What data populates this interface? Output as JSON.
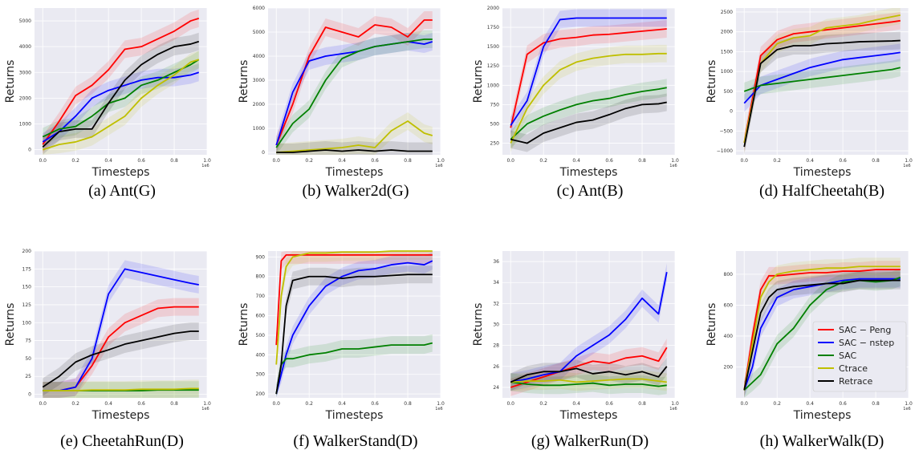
{
  "figure": {
    "legend": [
      "SAC − Peng",
      "SAC − nstep",
      "SAC",
      "Ctrace",
      "Retrace"
    ],
    "legend_placement": "lower-right of panel (h)"
  },
  "colors": {
    "SAC − Peng": "#ff0000",
    "SAC − nstep": "#0000ff",
    "SAC": "#008000",
    "Ctrace": "#bfbf00",
    "Retrace": "#000000",
    "panel_bg": "#eaeaf2",
    "grid": "#ffffff"
  },
  "chart_data": [
    {
      "type": "line",
      "caption": "(a)  Ant(G)",
      "xlabel": "Timesteps",
      "ylabel": "Returns",
      "xlim": [
        -0.05,
        1.0
      ],
      "ylim": [
        -200,
        5500
      ],
      "xticks": [
        "0.0",
        "0.2",
        "0.4",
        "0.6",
        "0.8",
        "1.0"
      ],
      "xtick_values": [
        0,
        0.2,
        0.4,
        0.6,
        0.8,
        1.0
      ],
      "x_exponent": "1e6",
      "yticks": [
        "0",
        "1000",
        "2000",
        "3000",
        "4000",
        "5000"
      ],
      "ytick_values": [
        0,
        1000,
        2000,
        3000,
        4000,
        5000
      ],
      "x": [
        0.0,
        0.1,
        0.2,
        0.3,
        0.4,
        0.5,
        0.6,
        0.7,
        0.8,
        0.9,
        0.95
      ],
      "series": [
        {
          "name": "SAC − Peng",
          "values": [
            200,
            1100,
            2100,
            2500,
            3100,
            3900,
            4000,
            4300,
            4600,
            5000,
            5100
          ]
        },
        {
          "name": "SAC − nstep",
          "values": [
            300,
            700,
            1300,
            2000,
            2300,
            2500,
            2700,
            2800,
            2800,
            2900,
            3000
          ]
        },
        {
          "name": "SAC",
          "values": [
            500,
            800,
            900,
            1300,
            1800,
            2000,
            2500,
            2700,
            3000,
            3300,
            3500
          ]
        },
        {
          "name": "Ctrace",
          "values": [
            0,
            200,
            300,
            500,
            900,
            1300,
            2000,
            2500,
            2900,
            3400,
            3500
          ]
        },
        {
          "name": "Retrace",
          "values": [
            100,
            700,
            800,
            800,
            1800,
            2700,
            3300,
            3700,
            4000,
            4100,
            4200
          ]
        }
      ]
    },
    {
      "type": "line",
      "caption": "(b)  Walker2d(G)",
      "xlabel": "Timesteps",
      "ylabel": "Returns",
      "xlim": [
        -0.05,
        1.0
      ],
      "ylim": [
        -100,
        6000
      ],
      "xticks": [
        "0.0",
        "0.2",
        "0.4",
        "0.6",
        "0.8",
        "1.0"
      ],
      "xtick_values": [
        0,
        0.2,
        0.4,
        0.6,
        0.8,
        1.0
      ],
      "x_exponent": "1e6",
      "yticks": [
        "0",
        "1000",
        "2000",
        "3000",
        "4000",
        "5000",
        "6000"
      ],
      "ytick_values": [
        0,
        1000,
        2000,
        3000,
        4000,
        5000,
        6000
      ],
      "x": [
        0.0,
        0.1,
        0.2,
        0.3,
        0.4,
        0.5,
        0.6,
        0.7,
        0.8,
        0.9,
        0.95
      ],
      "series": [
        {
          "name": "SAC − Peng",
          "values": [
            300,
            2000,
            4000,
            5200,
            5000,
            4800,
            5300,
            5200,
            4800,
            5500,
            5500
          ]
        },
        {
          "name": "SAC − nstep",
          "values": [
            300,
            2500,
            3800,
            4000,
            4100,
            4200,
            4400,
            4500,
            4600,
            4500,
            4600
          ]
        },
        {
          "name": "SAC",
          "values": [
            200,
            1200,
            1800,
            3000,
            3900,
            4200,
            4400,
            4500,
            4600,
            4700,
            4700
          ]
        },
        {
          "name": "Ctrace",
          "values": [
            0,
            50,
            100,
            150,
            200,
            300,
            200,
            900,
            1300,
            800,
            700
          ]
        },
        {
          "name": "Retrace",
          "values": [
            0,
            0,
            50,
            100,
            50,
            100,
            50,
            100,
            50,
            50,
            50
          ]
        }
      ]
    },
    {
      "type": "line",
      "caption": "(c)  Ant(B)",
      "xlabel": "Timesteps",
      "ylabel": "Returns",
      "xlim": [
        -0.05,
        1.0
      ],
      "ylim": [
        100,
        2000
      ],
      "xticks": [
        "0.0",
        "0.2",
        "0.4",
        "0.6",
        "0.8",
        "1.0"
      ],
      "xtick_values": [
        0,
        0.2,
        0.4,
        0.6,
        0.8,
        1.0
      ],
      "x_exponent": "1e6",
      "yticks": [
        "250",
        "500",
        "750",
        "1000",
        "1250",
        "1500",
        "1750",
        "2000"
      ],
      "ytick_values": [
        250,
        500,
        750,
        1000,
        1250,
        1500,
        1750,
        2000
      ],
      "x": [
        0.0,
        0.1,
        0.2,
        0.3,
        0.4,
        0.5,
        0.6,
        0.7,
        0.8,
        0.9,
        0.95
      ],
      "series": [
        {
          "name": "SAC − Peng",
          "values": [
            450,
            1400,
            1550,
            1600,
            1620,
            1650,
            1660,
            1680,
            1700,
            1720,
            1730
          ]
        },
        {
          "name": "SAC − nstep",
          "values": [
            480,
            800,
            1500,
            1850,
            1870,
            1870,
            1870,
            1870,
            1870,
            1870,
            1870
          ]
        },
        {
          "name": "SAC",
          "values": [
            300,
            500,
            600,
            680,
            750,
            800,
            830,
            880,
            920,
            950,
            970
          ]
        },
        {
          "name": "Ctrace",
          "values": [
            250,
            700,
            1000,
            1200,
            1300,
            1350,
            1380,
            1400,
            1400,
            1410,
            1410
          ]
        },
        {
          "name": "Retrace",
          "values": [
            300,
            250,
            380,
            450,
            520,
            550,
            620,
            700,
            750,
            760,
            780
          ]
        }
      ]
    },
    {
      "type": "line",
      "caption": "(d)  HalfCheetah(B)",
      "xlabel": "Timesteps",
      "ylabel": "Returns",
      "xlim": [
        -0.05,
        1.0
      ],
      "ylim": [
        -1100,
        2600
      ],
      "xticks": [
        "0.0",
        "0.2",
        "0.4",
        "0.6",
        "0.8",
        "1.0"
      ],
      "xtick_values": [
        0,
        0.2,
        0.4,
        0.6,
        0.8,
        1.0
      ],
      "x_exponent": "1e6",
      "yticks": [
        "−1000",
        "−500",
        "0",
        "500",
        "1000",
        "1500",
        "2000",
        "2500"
      ],
      "ytick_values": [
        -1000,
        -500,
        0,
        500,
        1000,
        1500,
        2000,
        2500
      ],
      "x": [
        0.0,
        0.1,
        0.2,
        0.3,
        0.4,
        0.5,
        0.6,
        0.7,
        0.8,
        0.9,
        0.95
      ],
      "series": [
        {
          "name": "SAC − Peng",
          "values": [
            -800,
            1400,
            1800,
            1950,
            2000,
            2050,
            2100,
            2150,
            2200,
            2250,
            2280
          ]
        },
        {
          "name": "SAC − nstep",
          "values": [
            200,
            650,
            800,
            950,
            1100,
            1200,
            1300,
            1350,
            1400,
            1450,
            1480
          ]
        },
        {
          "name": "SAC",
          "values": [
            500,
            650,
            700,
            750,
            800,
            850,
            900,
            950,
            1000,
            1050,
            1100
          ]
        },
        {
          "name": "Ctrace",
          "values": [
            -800,
            1200,
            1700,
            1850,
            1900,
            2100,
            2150,
            2200,
            2300,
            2380,
            2420
          ]
        },
        {
          "name": "Retrace",
          "values": [
            -900,
            1200,
            1550,
            1650,
            1650,
            1700,
            1720,
            1750,
            1760,
            1770,
            1780
          ]
        }
      ]
    },
    {
      "type": "line",
      "caption": "(e)  CheetahRun(D)",
      "xlabel": "Timesteps",
      "ylabel": "Returns",
      "xlim": [
        -0.05,
        1.0
      ],
      "ylim": [
        -5,
        200
      ],
      "xticks": [
        "0.0",
        "0.2",
        "0.4",
        "0.6",
        "0.8",
        "1.0"
      ],
      "xtick_values": [
        0,
        0.2,
        0.4,
        0.6,
        0.8,
        1.0
      ],
      "x_exponent": "1e6",
      "yticks": [
        "0",
        "25",
        "50",
        "75",
        "100",
        "125",
        "150",
        "175",
        "200"
      ],
      "ytick_values": [
        0,
        25,
        50,
        75,
        100,
        125,
        150,
        175,
        200
      ],
      "x": [
        0.0,
        0.1,
        0.2,
        0.3,
        0.4,
        0.5,
        0.6,
        0.7,
        0.8,
        0.9,
        0.95
      ],
      "series": [
        {
          "name": "SAC − Peng",
          "values": [
            5,
            5,
            10,
            40,
            80,
            100,
            110,
            120,
            122,
            122,
            122
          ]
        },
        {
          "name": "SAC − nstep",
          "values": [
            5,
            5,
            10,
            50,
            140,
            175,
            170,
            165,
            160,
            155,
            153
          ]
        },
        {
          "name": "SAC",
          "values": [
            5,
            5,
            5,
            5,
            5,
            5,
            5,
            6,
            6,
            6,
            6
          ]
        },
        {
          "name": "Ctrace",
          "values": [
            5,
            5,
            5,
            6,
            6,
            6,
            7,
            7,
            7,
            8,
            8
          ]
        },
        {
          "name": "Retrace",
          "values": [
            10,
            25,
            45,
            55,
            62,
            70,
            75,
            80,
            85,
            88,
            88
          ]
        }
      ]
    },
    {
      "type": "line",
      "caption": "(f)  WalkerStand(D)",
      "xlabel": "Timesteps",
      "ylabel": "Returns",
      "xlim": [
        -0.05,
        1.0
      ],
      "ylim": [
        180,
        930
      ],
      "xticks": [
        "0.0",
        "0.2",
        "0.4",
        "0.6",
        "0.8",
        "1.0"
      ],
      "xtick_values": [
        0,
        0.2,
        0.4,
        0.6,
        0.8,
        1.0
      ],
      "x_exponent": "1e6",
      "yticks": [
        "200",
        "300",
        "400",
        "500",
        "600",
        "700",
        "800",
        "900"
      ],
      "ytick_values": [
        200,
        300,
        400,
        500,
        600,
        700,
        800,
        900
      ],
      "x": [
        0.0,
        0.03,
        0.06,
        0.1,
        0.2,
        0.3,
        0.4,
        0.5,
        0.6,
        0.7,
        0.8,
        0.9,
        0.95
      ],
      "series": [
        {
          "name": "SAC − Peng",
          "values": [
            450,
            880,
            910,
            910,
            910,
            910,
            910,
            910,
            910,
            910,
            910,
            910,
            910
          ]
        },
        {
          "name": "SAC − nstep",
          "values": [
            200,
            300,
            400,
            500,
            650,
            750,
            800,
            830,
            840,
            860,
            870,
            860,
            880
          ]
        },
        {
          "name": "SAC",
          "values": [
            200,
            350,
            380,
            380,
            400,
            410,
            430,
            430,
            440,
            450,
            450,
            450,
            460
          ]
        },
        {
          "name": "Ctrace",
          "values": [
            350,
            700,
            850,
            900,
            920,
            920,
            925,
            925,
            925,
            930,
            930,
            930,
            930
          ]
        },
        {
          "name": "Retrace",
          "values": [
            200,
            350,
            650,
            780,
            800,
            800,
            790,
            800,
            800,
            805,
            810,
            810,
            810
          ]
        }
      ]
    },
    {
      "type": "line",
      "caption": "(g)  WalkerRun(D)",
      "xlabel": "Timesteps",
      "ylabel": "Returns",
      "xlim": [
        -0.05,
        1.0
      ],
      "ylim": [
        23,
        37
      ],
      "xticks": [
        "0.0",
        "0.2",
        "0.4",
        "0.6",
        "0.8",
        "1.0"
      ],
      "xtick_values": [
        0,
        0.2,
        0.4,
        0.6,
        0.8,
        1.0
      ],
      "x_exponent": "1e6",
      "yticks": [
        "24",
        "26",
        "28",
        "30",
        "32",
        "34",
        "36"
      ],
      "ytick_values": [
        24,
        26,
        28,
        30,
        32,
        34,
        36
      ],
      "x": [
        0.0,
        0.1,
        0.2,
        0.3,
        0.4,
        0.5,
        0.6,
        0.7,
        0.8,
        0.9,
        0.95
      ],
      "series": [
        {
          "name": "SAC − Peng",
          "values": [
            24,
            24.5,
            25,
            25.5,
            26,
            26.5,
            26.3,
            26.8,
            27,
            26.5,
            27.8
          ]
        },
        {
          "name": "SAC − nstep",
          "values": [
            24.5,
            24.8,
            25.2,
            25.5,
            27,
            28,
            29,
            30.5,
            32.5,
            31,
            35
          ]
        },
        {
          "name": "SAC",
          "values": [
            24.5,
            24.3,
            24.2,
            24.2,
            24.3,
            24.4,
            24.2,
            24.3,
            24.3,
            24.1,
            24.2
          ]
        },
        {
          "name": "Ctrace",
          "values": [
            24.5,
            24.6,
            24.6,
            24.7,
            24.5,
            24.6,
            24.7,
            24.8,
            24.8,
            24.6,
            24.5
          ]
        },
        {
          "name": "Retrace",
          "values": [
            24.5,
            25.2,
            25.5,
            25.5,
            25.8,
            25.3,
            25.5,
            25.2,
            25.5,
            25,
            26
          ]
        }
      ]
    },
    {
      "type": "line",
      "caption": "(h)  WalkerWalk(D)",
      "xlabel": "Timesteps",
      "ylabel": "Returns",
      "xlim": [
        -0.05,
        1.0
      ],
      "ylim": [
        0,
        950
      ],
      "xticks": [
        "0.0",
        "0.2",
        "0.4",
        "0.6",
        "0.8",
        "1.0"
      ],
      "xtick_values": [
        0,
        0.2,
        0.4,
        0.6,
        0.8,
        1.0
      ],
      "x_exponent": "1e6",
      "yticks": [
        "200",
        "400",
        "600",
        "800"
      ],
      "ytick_values": [
        200,
        400,
        600,
        800
      ],
      "x": [
        0.0,
        0.05,
        0.1,
        0.15,
        0.2,
        0.3,
        0.4,
        0.5,
        0.6,
        0.7,
        0.8,
        0.9,
        0.95
      ],
      "series": [
        {
          "name": "SAC − Peng",
          "values": [
            50,
            400,
            700,
            790,
            790,
            800,
            810,
            810,
            820,
            820,
            830,
            830,
            830
          ]
        },
        {
          "name": "SAC − nstep",
          "values": [
            50,
            200,
            450,
            550,
            650,
            700,
            720,
            740,
            760,
            770,
            770,
            770,
            770
          ]
        },
        {
          "name": "SAC",
          "values": [
            50,
            100,
            150,
            250,
            350,
            450,
            600,
            700,
            750,
            760,
            750,
            760,
            780
          ]
        },
        {
          "name": "Ctrace",
          "values": [
            50,
            350,
            650,
            750,
            800,
            820,
            830,
            840,
            840,
            850,
            850,
            850,
            850
          ]
        },
        {
          "name": "Retrace",
          "values": [
            50,
            300,
            550,
            650,
            700,
            720,
            730,
            740,
            740,
            760,
            760,
            760,
            760
          ]
        }
      ]
    }
  ]
}
